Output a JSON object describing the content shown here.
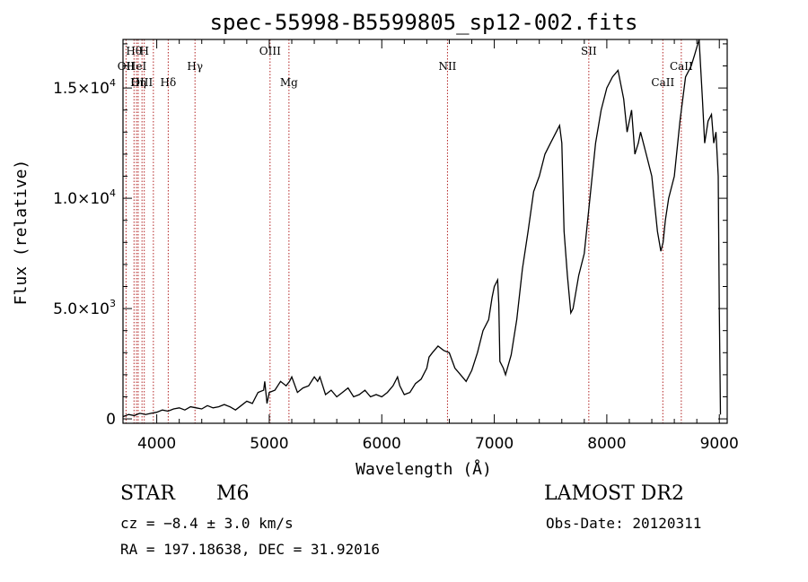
{
  "chart_data": {
    "type": "line",
    "title": "spec-55998-B5599805_sp12-002.fits",
    "xlabel": "Wavelength (Å)",
    "ylabel": "Flux (relative)",
    "xlim": [
      3700,
      9070
    ],
    "ylim": [
      -200,
      17200
    ],
    "x_ticks": [
      4000,
      5000,
      6000,
      7000,
      8000,
      9000
    ],
    "x_tick_labels": [
      "4000",
      "5000",
      "6000",
      "7000",
      "8000",
      "9000"
    ],
    "y_ticks": [
      0,
      5000,
      10000,
      15000
    ],
    "y_tick_labels": [
      {
        "mantissa": "0",
        "exp": ""
      },
      {
        "mantissa": "5.0×10",
        "exp": "3"
      },
      {
        "mantissa": "1.0×10",
        "exp": "4"
      },
      {
        "mantissa": "1.5×10",
        "exp": "4"
      }
    ],
    "series": [
      {
        "x": [
          3700,
          3750,
          3800,
          3850,
          3900,
          3950,
          4000,
          4050,
          4100,
          4150,
          4200,
          4250,
          4300,
          4350,
          4400,
          4450,
          4500,
          4550,
          4600,
          4650,
          4700,
          4750,
          4800,
          4850,
          4900,
          4950,
          4960,
          4980,
          5000,
          5050,
          5100,
          5150,
          5180,
          5200,
          5250,
          5300,
          5350,
          5400,
          5430,
          5450,
          5500,
          5550,
          5600,
          5650,
          5700,
          5750,
          5800,
          5850,
          5900,
          5950,
          6000,
          6050,
          6100,
          6140,
          6160,
          6200,
          6250,
          6300,
          6350,
          6400,
          6420,
          6450,
          6500,
          6550,
          6600,
          6650,
          6700,
          6750,
          6800,
          6850,
          6900,
          6950,
          6980,
          7000,
          7030,
          7040,
          7050,
          7080,
          7100,
          7150,
          7200,
          7250,
          7300,
          7350,
          7400,
          7450,
          7500,
          7550,
          7580,
          7600,
          7620,
          7650,
          7680,
          7700,
          7750,
          7800,
          7850,
          7900,
          7950,
          8000,
          8050,
          8100,
          8150,
          8180,
          8200,
          8220,
          8250,
          8280,
          8300,
          8350,
          8400,
          8450,
          8480,
          8500,
          8520,
          8550,
          8600,
          8650,
          8700,
          8750,
          8780,
          8820,
          8850,
          8870,
          8900,
          8930,
          8950,
          8970,
          8990,
          9000,
          9010
        ],
        "y": [
          100,
          200,
          150,
          250,
          200,
          250,
          300,
          400,
          350,
          450,
          500,
          400,
          550,
          500,
          450,
          600,
          500,
          550,
          650,
          550,
          400,
          600,
          800,
          700,
          1200,
          1300,
          1700,
          700,
          1200,
          1300,
          1700,
          1500,
          1700,
          1900,
          1200,
          1400,
          1500,
          1900,
          1700,
          1900,
          1100,
          1300,
          1000,
          1200,
          1400,
          1000,
          1100,
          1300,
          1000,
          1100,
          1000,
          1200,
          1500,
          1900,
          1500,
          1100,
          1200,
          1600,
          1800,
          2300,
          2800,
          3000,
          3300,
          3100,
          3000,
          2300,
          2000,
          1700,
          2200,
          3000,
          4000,
          4500,
          5500,
          6000,
          6300,
          5200,
          2600,
          2300,
          2000,
          2900,
          4500,
          6800,
          8500,
          10300,
          11000,
          12000,
          12500,
          13000,
          13300,
          12500,
          8500,
          6500,
          4800,
          5000,
          6500,
          7500,
          10000,
          12500,
          14000,
          15000,
          15500,
          15800,
          14500,
          13000,
          13500,
          14000,
          12000,
          12500,
          13000,
          12000,
          11000,
          8500,
          7600,
          8000,
          9000,
          10000,
          11000,
          13500,
          15500,
          16000,
          16500,
          17500,
          14500,
          12500,
          13500,
          13800,
          12500,
          13000,
          11000,
          5000,
          200
        ]
      }
    ],
    "line_markers": [
      {
        "wavelength": 3798,
        "label": "Hθ",
        "row": 1
      },
      {
        "wavelength": 3889,
        "label": "H",
        "row": 1
      },
      {
        "wavelength": 3727,
        "label": "OII",
        "row": 2
      },
      {
        "wavelength": 3820,
        "label": "HeI",
        "row": 2
      },
      {
        "wavelength": 3869,
        "label": "OIII",
        "row": 3
      },
      {
        "wavelength": 3835,
        "label": "Hη",
        "row": 3
      },
      {
        "wavelength": 3970,
        "label": "",
        "row": 0
      },
      {
        "wavelength": 4102,
        "label": "Hδ",
        "row": 3
      },
      {
        "wavelength": 4340,
        "label": "Hγ",
        "row": 2
      },
      {
        "wavelength": 5007,
        "label": "OIII",
        "row": 1
      },
      {
        "wavelength": 5175,
        "label": "Mg",
        "row": 3
      },
      {
        "wavelength": 6584,
        "label": "NII",
        "row": 2
      },
      {
        "wavelength": 7840,
        "label": "SII",
        "row": 1
      },
      {
        "wavelength": 8498,
        "label": "CaII",
        "row": 3
      },
      {
        "wavelength": 8662,
        "label": "CaII",
        "row": 2
      }
    ],
    "grid": false,
    "legend": "none"
  },
  "info": {
    "class_label": "STAR",
    "subclass": "M6",
    "survey": "LAMOST DR2",
    "redshift": "cz = −8.4 ± 3.0 km/s",
    "obs_date": "Obs-Date: 20120311",
    "coords": "RA = 197.18638, DEC =  31.92016"
  }
}
